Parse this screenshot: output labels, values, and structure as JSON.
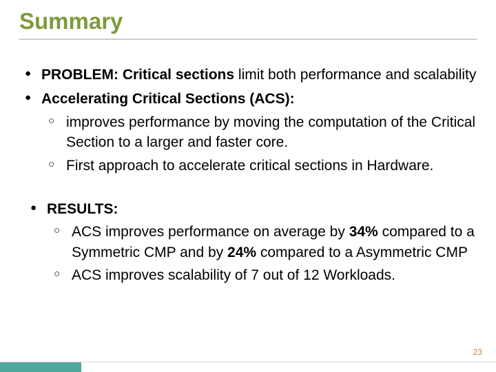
{
  "title": "Summary",
  "page_number": "23",
  "colors": {
    "title": "#7d9b3a",
    "underline": "#cccccc",
    "text": "#000000",
    "page_number": "#c87f3a",
    "footer_bar": "#4fa69a",
    "footer_line": "#d9d9d9",
    "background": "#ffffff"
  },
  "typography": {
    "title_fontsize": 33,
    "body_fontsize": 21,
    "pagenum_fontsize": 12,
    "font_family": "Arial"
  },
  "bullets": [
    {
      "strong": "PROBLEM: Critical sections",
      "rest": " limit both performance and scalability"
    },
    {
      "strong": "Accelerating Critical Sections (ACS):",
      "rest": "",
      "sub": [
        " improves performance by moving the computation of the Critical Section to a larger and faster core.",
        "  First approach to accelerate critical sections in Hardware."
      ]
    }
  ],
  "results": {
    "strong": "RESULTS:",
    "sub": [
      {
        "pre": " ACS improves performance on average by ",
        "b1": "34%",
        "mid": " compared to a Symmetric CMP and  by ",
        "b2": "24%",
        "post": " compared to a Asymmetric CMP"
      },
      " ACS improves scalability of 7 out of 12 Workloads."
    ]
  }
}
